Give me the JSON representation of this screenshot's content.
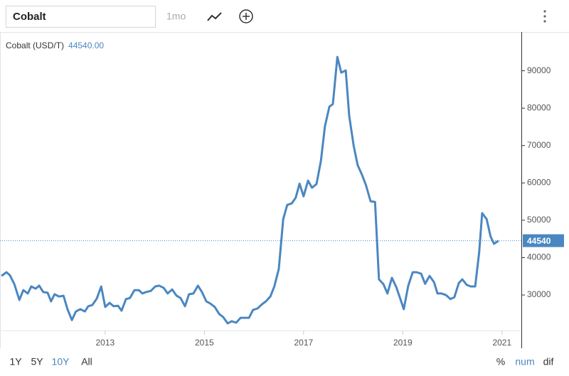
{
  "toolbar": {
    "search": "Cobalt",
    "interval": "1mo"
  },
  "chart_data": {
    "type": "line",
    "series": [
      {
        "name": "Cobalt (USD/T)",
        "color": "#4a87c1",
        "values": [
          35100,
          36100,
          35300,
          32900,
          28700,
          31300,
          30400,
          32300,
          31700,
          32500,
          30800,
          30600,
          28300,
          30200,
          29600,
          29800,
          26200,
          23300,
          25600,
          26200,
          25600,
          27000,
          27300,
          29000,
          32300,
          26800,
          27900,
          27000,
          27100,
          25800,
          28900,
          29200,
          31300,
          31300,
          30400,
          30800,
          31100,
          32300,
          32500,
          31900,
          30400,
          31500,
          29800,
          29200,
          27000,
          30200,
          30400,
          32500,
          30800,
          28300,
          27700,
          26800,
          24900,
          24100,
          22400,
          23000,
          22600,
          23900,
          23900,
          23900,
          26000,
          26400,
          27500,
          28300,
          29600,
          32300,
          37000,
          50300,
          54100,
          54500,
          56000,
          59800,
          56400,
          60600,
          58700,
          59700,
          65900,
          75100,
          80400,
          81100,
          93700,
          89500,
          90100,
          77900,
          69900,
          64800,
          62100,
          59300,
          55100,
          54900,
          34200,
          32900,
          30400,
          34600,
          32100,
          29000,
          26200,
          32500,
          36100,
          36100,
          35700,
          33000,
          35100,
          33400,
          30400,
          30400,
          30000,
          28900,
          29400,
          33200,
          34200,
          32700,
          32300,
          32300,
          41400,
          51900,
          50300,
          45600,
          43700,
          44540
        ]
      }
    ],
    "x": [
      2010.91,
      2011.01,
      2011.08,
      2011.17,
      2011.27,
      2011.35,
      2011.44,
      2011.51,
      2011.6,
      2011.67,
      2011.75,
      2011.84,
      2011.91,
      2011.98,
      2012.07,
      2012.16,
      2012.24,
      2012.33,
      2012.41,
      2012.5,
      2012.59,
      2012.66,
      2012.74,
      2012.83,
      2012.92,
      2013.0,
      2013.09,
      2013.17,
      2013.26,
      2013.33,
      2013.42,
      2013.5,
      2013.59,
      2013.68,
      2013.75,
      2013.83,
      2013.92,
      2014.01,
      2014.09,
      2014.18,
      2014.26,
      2014.35,
      2014.44,
      2014.52,
      2014.61,
      2014.69,
      2014.78,
      2014.87,
      2014.95,
      2015.04,
      2015.12,
      2015.21,
      2015.3,
      2015.38,
      2015.47,
      2015.55,
      2015.64,
      2015.73,
      2015.81,
      2015.9,
      2015.98,
      2016.07,
      2016.16,
      2016.24,
      2016.33,
      2016.41,
      2016.5,
      2016.59,
      2016.67,
      2016.76,
      2016.84,
      2016.92,
      2017.0,
      2017.09,
      2017.17,
      2017.26,
      2017.35,
      2017.43,
      2017.52,
      2017.59,
      2017.68,
      2017.76,
      2017.85,
      2017.92,
      2018.01,
      2018.09,
      2018.18,
      2018.26,
      2018.35,
      2018.44,
      2018.52,
      2018.61,
      2018.69,
      2018.78,
      2018.87,
      2018.95,
      2019.02,
      2019.11,
      2019.2,
      2019.28,
      2019.37,
      2019.45,
      2019.54,
      2019.63,
      2019.7,
      2019.78,
      2019.87,
      2019.96,
      2020.04,
      2020.13,
      2020.2,
      2020.29,
      2020.37,
      2020.46,
      2020.54,
      2020.6,
      2020.69,
      2020.77,
      2020.84,
      2020.93
    ],
    "current_label": "44540.00",
    "xlim": [
      2010.88,
      2021.39
    ],
    "xticks": [
      2013,
      2015,
      2017,
      2019,
      2021
    ],
    "ylim": [
      20500,
      100000
    ],
    "yticks": [
      30000,
      40000,
      50000,
      60000,
      70000,
      80000,
      90000
    ],
    "grid": false
  },
  "ranges": [
    "1Y",
    "5Y",
    "10Y",
    "All"
  ],
  "active_range": 2,
  "modes": [
    "%",
    "num",
    "dif"
  ],
  "active_mode": 1
}
